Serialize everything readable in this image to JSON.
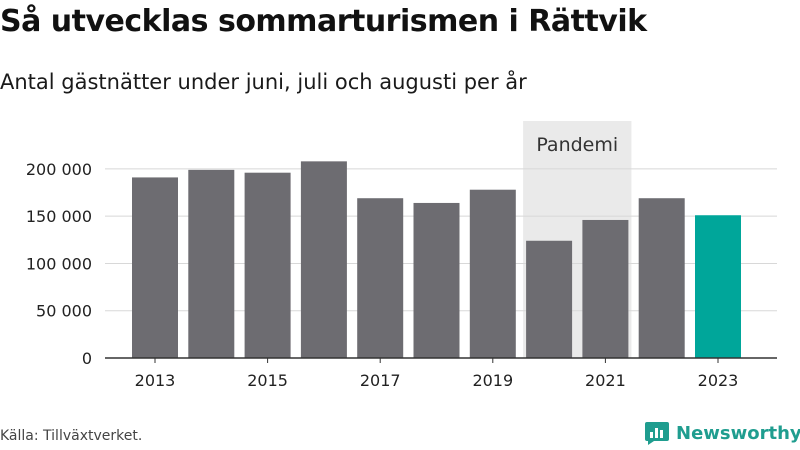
{
  "title": "Så utvecklas sommarturismen i Rättvik",
  "subtitle": "Antal gästnätter under juni, juli och augusti per år",
  "source": "Källa: Tillväxtverket.",
  "brand": {
    "name": "Newsworthy",
    "icon": "newsworthy-logo-icon",
    "color": "#1f9d8f"
  },
  "colors": {
    "bar": "#6d6c71",
    "highlight": "#00a69a",
    "pandemic_band": "#eaeaea",
    "grid": "#d8d8d8",
    "axis": "#333333"
  },
  "chart_data": {
    "type": "bar",
    "title": "Så utvecklas sommarturismen i Rättvik",
    "subtitle": "Antal gästnätter under juni, juli och augusti per år",
    "categories": [
      "2013",
      "2014",
      "2015",
      "2016",
      "2017",
      "2018",
      "2019",
      "2020",
      "2021",
      "2022",
      "2023"
    ],
    "values": [
      191000,
      199000,
      196000,
      208000,
      169000,
      164000,
      178000,
      124000,
      146000,
      169000,
      151000
    ],
    "highlight_category": "2023",
    "x_tick_labels": [
      "2013",
      "2015",
      "2017",
      "2019",
      "2021",
      "2023"
    ],
    "ylim": [
      0,
      220000
    ],
    "y_ticks": [
      0,
      50000,
      100000,
      150000,
      200000
    ],
    "y_tick_labels": [
      "0",
      "50 000",
      "100 000",
      "150 000",
      "200 000"
    ],
    "xlabel": "",
    "ylabel": "",
    "grid": true,
    "annotation": {
      "label": "Pandemi",
      "from": "2020",
      "to": "2021"
    }
  }
}
